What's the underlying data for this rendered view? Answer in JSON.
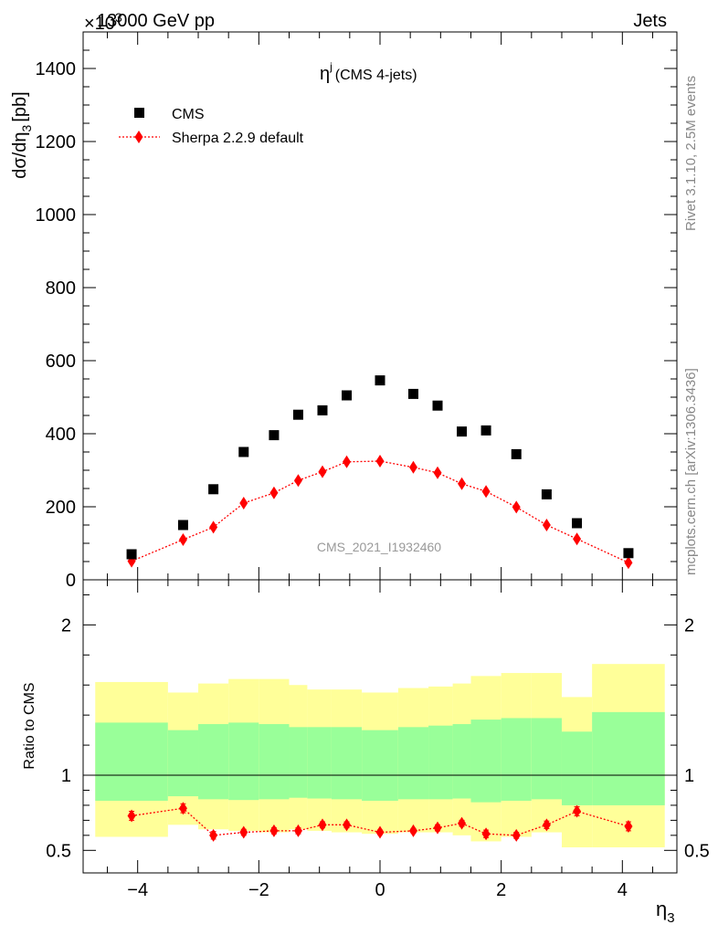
{
  "header": {
    "process": "13000 GeV pp",
    "category": "Jets",
    "multiplier": "×10",
    "multiplier_exp": "3"
  },
  "side_labels": {
    "rivet": "Rivet 3.1.10,  2.5M events",
    "mcplots": "mcplots.cern.ch [arXiv:1306.3436]"
  },
  "analysis_id": "CMS_2021_I1932460",
  "colors": {
    "mc": "#ff0000",
    "data": "#000000",
    "band_inner": "#99ff99",
    "band_outer": "#ffff99"
  },
  "chart_data": [
    {
      "type": "scatter",
      "title_main": "η",
      "title_sup": "j",
      "title_sub": "(CMS 4-jets)",
      "ylabel": "dσ/dη",
      "ylabel_sub": "3",
      "ylabel_unit": "[pb]",
      "ylim": [
        0,
        1500
      ],
      "xlim": [
        -4.9,
        4.9
      ],
      "yticks": [
        0,
        200,
        400,
        600,
        800,
        1000,
        1200,
        1400
      ],
      "ytick_labels": [
        "0",
        "200",
        "400",
        "600",
        "800",
        "1000",
        "1200",
        "1400"
      ],
      "legend_position": "top-left",
      "series": [
        {
          "name": "CMS",
          "marker": "square",
          "x": [
            -4.1,
            -3.25,
            -2.75,
            -2.25,
            -1.75,
            -1.35,
            -0.95,
            -0.55,
            0.0,
            0.55,
            0.95,
            1.35,
            1.75,
            2.25,
            2.75,
            3.25,
            4.1
          ],
          "y": [
            70,
            150,
            248,
            350,
            396,
            452,
            464,
            505,
            546,
            509,
            477,
            406,
            409,
            344,
            234,
            155,
            73
          ]
        },
        {
          "name": "Sherpa 2.2.9 default",
          "marker": "diamond",
          "x": [
            -4.1,
            -3.25,
            -2.75,
            -2.25,
            -1.75,
            -1.35,
            -0.95,
            -0.55,
            0.0,
            0.55,
            0.95,
            1.35,
            1.75,
            2.25,
            2.75,
            3.25,
            4.1
          ],
          "y": [
            51,
            110,
            144,
            210,
            238,
            272,
            296,
            323,
            325,
            308,
            293,
            263,
            242,
            199,
            150,
            112,
            47
          ]
        }
      ]
    },
    {
      "type": "line",
      "ylabel": "Ratio to CMS",
      "xlabel": "η",
      "xlabel_sub": "3",
      "ylim": [
        0.35,
        2.3
      ],
      "xlim": [
        -4.9,
        4.9
      ],
      "yticks": [
        0.5,
        1,
        2
      ],
      "ytick_labels": [
        "0.5",
        "1",
        "2"
      ],
      "xticks": [
        -4,
        -2,
        0,
        2,
        4
      ],
      "xtick_labels": [
        "−4",
        "−2",
        "0",
        "2",
        "4"
      ],
      "bin_edges": [
        -4.7,
        -3.5,
        -3.0,
        -2.5,
        -2.0,
        -1.5,
        -1.2,
        -0.8,
        -0.3,
        0.3,
        0.8,
        1.2,
        1.5,
        2.0,
        2.5,
        3.0,
        3.5,
        4.7
      ],
      "band_inner": {
        "low": [
          0.83,
          0.86,
          0.84,
          0.835,
          0.84,
          0.85,
          0.845,
          0.84,
          0.83,
          0.84,
          0.84,
          0.845,
          0.82,
          0.83,
          0.84,
          0.8,
          0.8
        ],
        "high": [
          1.35,
          1.3,
          1.34,
          1.35,
          1.34,
          1.32,
          1.32,
          1.32,
          1.3,
          1.32,
          1.33,
          1.34,
          1.37,
          1.38,
          1.38,
          1.29,
          1.42
        ]
      },
      "band_outer": {
        "low": [
          0.59,
          0.67,
          0.64,
          0.63,
          0.62,
          0.64,
          0.63,
          0.62,
          0.61,
          0.62,
          0.62,
          0.6,
          0.56,
          0.59,
          0.62,
          0.52,
          0.52
        ],
        "high": [
          1.62,
          1.55,
          1.61,
          1.64,
          1.64,
          1.6,
          1.57,
          1.57,
          1.55,
          1.58,
          1.59,
          1.61,
          1.66,
          1.68,
          1.68,
          1.52,
          1.74
        ]
      },
      "series": [
        {
          "name": "Sherpa 2.2.9 default",
          "x": [
            -4.1,
            -3.25,
            -2.75,
            -2.25,
            -1.75,
            -1.35,
            -0.95,
            -0.55,
            0.0,
            0.55,
            0.95,
            1.35,
            1.75,
            2.25,
            2.75,
            3.25,
            4.1
          ],
          "y": [
            0.73,
            0.78,
            0.6,
            0.62,
            0.63,
            0.63,
            0.67,
            0.67,
            0.62,
            0.63,
            0.65,
            0.68,
            0.61,
            0.6,
            0.67,
            0.76,
            0.66
          ],
          "err": [
            0.03,
            0.03,
            0.025,
            0.02,
            0.02,
            0.02,
            0.02,
            0.02,
            0.015,
            0.015,
            0.02,
            0.02,
            0.025,
            0.02,
            0.025,
            0.03,
            0.03
          ]
        }
      ]
    }
  ]
}
